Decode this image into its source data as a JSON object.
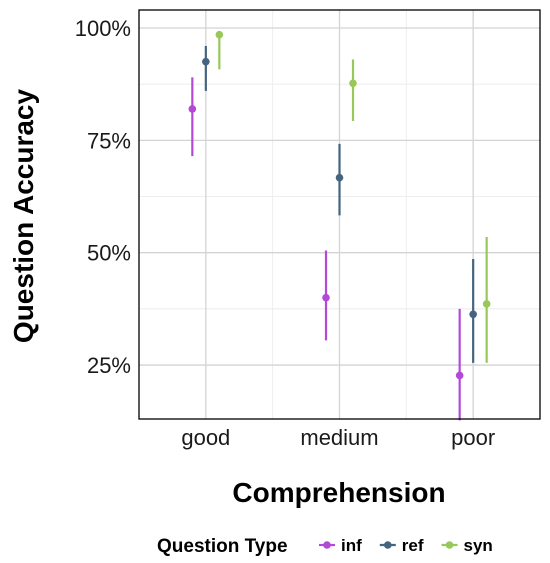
{
  "chart_data": {
    "type": "scatter",
    "subtype": "pointrange",
    "xlabel": "Comprehension",
    "ylabel": "Question Accuracy",
    "categories": [
      "good",
      "medium",
      "poor"
    ],
    "ylim": [
      0.13,
      1.04
    ],
    "yticks": [
      0.25,
      0.5,
      0.75,
      1.0
    ],
    "ytick_labels": [
      "25%",
      "50%",
      "75%",
      "100%"
    ],
    "grid": true,
    "legend": {
      "title": "Question Type",
      "position": "bottom"
    },
    "series": [
      {
        "name": "inf",
        "color": "#b449d8",
        "points": [
          {
            "category": "good",
            "y": 0.82,
            "ymin": 0.715,
            "ymax": 0.89
          },
          {
            "category": "medium",
            "y": 0.4,
            "ymin": 0.305,
            "ymax": 0.505
          },
          {
            "category": "poor",
            "y": 0.227,
            "ymin": 0.127,
            "ymax": 0.375
          }
        ]
      },
      {
        "name": "ref",
        "color": "#44647f",
        "points": [
          {
            "category": "good",
            "y": 0.925,
            "ymin": 0.86,
            "ymax": 0.96
          },
          {
            "category": "medium",
            "y": 0.667,
            "ymin": 0.583,
            "ymax": 0.742
          },
          {
            "category": "poor",
            "y": 0.363,
            "ymin": 0.255,
            "ymax": 0.486
          }
        ]
      },
      {
        "name": "syn",
        "color": "#99c85a",
        "points": [
          {
            "category": "good",
            "y": 0.985,
            "ymin": 0.908,
            "ymax": 0.99
          },
          {
            "category": "medium",
            "y": 0.877,
            "ymin": 0.793,
            "ymax": 0.93
          },
          {
            "category": "poor",
            "y": 0.386,
            "ymin": 0.255,
            "ymax": 0.535
          }
        ]
      }
    ]
  }
}
